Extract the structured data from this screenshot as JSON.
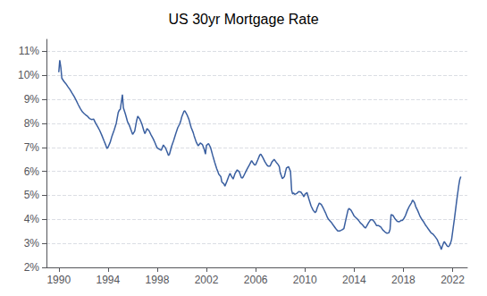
{
  "chart_data": {
    "type": "line",
    "title": "US 30yr Mortgage Rate",
    "color": "#3A5FA0",
    "grid": "y",
    "xlim": [
      1989.0,
      2023.2
    ],
    "ylim": [
      0.02,
      0.115
    ],
    "xticks": [
      1990,
      1994,
      1998,
      2002,
      2006,
      2010,
      2014,
      2018,
      2022
    ],
    "yticks": [
      {
        "value": 0.02,
        "label": "2%"
      },
      {
        "value": 0.03,
        "label": "3%"
      },
      {
        "value": 0.04,
        "label": "4%"
      },
      {
        "value": 0.05,
        "label": "5%"
      },
      {
        "value": 0.06,
        "label": "6%"
      },
      {
        "value": 0.07,
        "label": "7%"
      },
      {
        "value": 0.08,
        "label": "8%"
      },
      {
        "value": 0.09,
        "label": "9%"
      },
      {
        "value": 0.1,
        "label": "10%"
      },
      {
        "value": 0.11,
        "label": "11%"
      }
    ],
    "x": [
      1990.0,
      1990.08,
      1990.17,
      1990.25,
      1990.42,
      1990.58,
      1990.75,
      1990.92,
      1991.08,
      1991.25,
      1991.42,
      1991.58,
      1991.75,
      1991.92,
      1992.08,
      1992.17,
      1992.33,
      1992.5,
      1992.67,
      1992.83,
      1993.0,
      1993.17,
      1993.33,
      1993.5,
      1993.67,
      1993.83,
      1993.92,
      1994.0,
      1994.17,
      1994.33,
      1994.5,
      1994.67,
      1994.83,
      1994.92,
      1995.0,
      1995.17,
      1995.25,
      1995.42,
      1995.58,
      1995.75,
      1995.92,
      1996.0,
      1996.17,
      1996.33,
      1996.42,
      1996.58,
      1996.75,
      1996.92,
      1997.0,
      1997.17,
      1997.33,
      1997.5,
      1997.67,
      1997.83,
      1997.92,
      1998.0,
      1998.17,
      1998.33,
      1998.5,
      1998.67,
      1998.83,
      1998.92,
      1999.0,
      1999.17,
      1999.33,
      1999.5,
      1999.67,
      1999.83,
      1999.92,
      2000.0,
      2000.17,
      2000.25,
      2000.42,
      2000.58,
      2000.75,
      2000.92,
      2001.0,
      2001.17,
      2001.33,
      2001.5,
      2001.67,
      2001.83,
      2001.92,
      2002.0,
      2002.17,
      2002.33,
      2002.5,
      2002.67,
      2002.83,
      2002.92,
      2003.0,
      2003.17,
      2003.25,
      2003.42,
      2003.5,
      2003.67,
      2003.83,
      2003.92,
      2004.0,
      2004.17,
      2004.33,
      2004.5,
      2004.67,
      2004.83,
      2004.92,
      2005.0,
      2005.17,
      2005.33,
      2005.5,
      2005.67,
      2005.83,
      2005.92,
      2006.0,
      2006.17,
      2006.33,
      2006.42,
      2006.58,
      2006.75,
      2006.92,
      2007.0,
      2007.17,
      2007.33,
      2007.5,
      2007.67,
      2007.83,
      2007.92,
      2008.0,
      2008.17,
      2008.33,
      2008.5,
      2008.67,
      2008.75,
      2008.83,
      2008.92,
      2009.0,
      2009.08,
      2009.17,
      2009.33,
      2009.5,
      2009.67,
      2009.83,
      2009.92,
      2010.0,
      2010.17,
      2010.33,
      2010.5,
      2010.67,
      2010.83,
      2010.92,
      2011.0,
      2011.17,
      2011.33,
      2011.5,
      2011.67,
      2011.83,
      2011.92,
      2012.0,
      2012.17,
      2012.33,
      2012.5,
      2012.67,
      2012.83,
      2012.92,
      2013.0,
      2013.17,
      2013.33,
      2013.5,
      2013.58,
      2013.75,
      2013.92,
      2014.0,
      2014.17,
      2014.33,
      2014.5,
      2014.67,
      2014.83,
      2014.92,
      2015.0,
      2015.17,
      2015.33,
      2015.5,
      2015.67,
      2015.83,
      2015.92,
      2016.0,
      2016.17,
      2016.33,
      2016.5,
      2016.67,
      2016.83,
      2016.92,
      2017.0,
      2017.17,
      2017.33,
      2017.5,
      2017.67,
      2017.83,
      2017.92,
      2018.0,
      2018.17,
      2018.33,
      2018.5,
      2018.67,
      2018.75,
      2018.83,
      2018.92,
      2019.0,
      2019.17,
      2019.33,
      2019.5,
      2019.67,
      2019.83,
      2019.92,
      2020.0,
      2020.17,
      2020.25,
      2020.42,
      2020.58,
      2020.75,
      2020.83,
      2020.92,
      2021.0,
      2021.08,
      2021.17,
      2021.25,
      2021.33,
      2021.42,
      2021.5,
      2021.58,
      2021.67,
      2021.75,
      2021.83,
      2021.92,
      2022.0,
      2022.17,
      2022.33,
      2022.5,
      2022.58,
      2022.67
    ],
    "values": [
      0.1013,
      0.1063,
      0.1032,
      0.0988,
      0.0975,
      0.0965,
      0.0952,
      0.094,
      0.0926,
      0.0912,
      0.0895,
      0.0878,
      0.0862,
      0.0848,
      0.084,
      0.0836,
      0.083,
      0.082,
      0.0816,
      0.0818,
      0.08,
      0.0785,
      0.077,
      0.075,
      0.0728,
      0.0708,
      0.0695,
      0.07,
      0.072,
      0.0748,
      0.0772,
      0.08,
      0.0845,
      0.0855,
      0.0858,
      0.092,
      0.0865,
      0.0838,
      0.0808,
      0.079,
      0.0765,
      0.0754,
      0.0768,
      0.0812,
      0.083,
      0.0818,
      0.0798,
      0.0768,
      0.0757,
      0.0778,
      0.077,
      0.0752,
      0.0736,
      0.0718,
      0.0706,
      0.0698,
      0.0692,
      0.0688,
      0.071,
      0.0698,
      0.0678,
      0.0666,
      0.0672,
      0.0705,
      0.0728,
      0.0756,
      0.0782,
      0.0798,
      0.0812,
      0.0828,
      0.085,
      0.0852,
      0.0836,
      0.0816,
      0.0784,
      0.0762,
      0.0748,
      0.0722,
      0.0706,
      0.0718,
      0.0712,
      0.069,
      0.0672,
      0.0708,
      0.0716,
      0.07,
      0.0668,
      0.0638,
      0.0612,
      0.06,
      0.0588,
      0.0578,
      0.0556,
      0.0548,
      0.0538,
      0.056,
      0.0582,
      0.0592,
      0.0582,
      0.0568,
      0.0592,
      0.0606,
      0.0598,
      0.0574,
      0.0572,
      0.0578,
      0.0596,
      0.0612,
      0.0628,
      0.0645,
      0.0632,
      0.0626,
      0.0628,
      0.0648,
      0.0668,
      0.0672,
      0.0658,
      0.064,
      0.0626,
      0.0622,
      0.0622,
      0.064,
      0.065,
      0.0638,
      0.0628,
      0.062,
      0.0594,
      0.057,
      0.0578,
      0.0614,
      0.062,
      0.061,
      0.06,
      0.0522,
      0.0506,
      0.051,
      0.0504,
      0.0508,
      0.0516,
      0.0514,
      0.0502,
      0.0494,
      0.0504,
      0.0512,
      0.0484,
      0.0456,
      0.0438,
      0.0428,
      0.0434,
      0.0448,
      0.0468,
      0.0462,
      0.0446,
      0.0428,
      0.0408,
      0.04,
      0.0396,
      0.0386,
      0.0374,
      0.0362,
      0.0352,
      0.0352,
      0.0354,
      0.0356,
      0.0362,
      0.04,
      0.0438,
      0.0446,
      0.0438,
      0.0422,
      0.0414,
      0.0406,
      0.0398,
      0.0386,
      0.0378,
      0.0368,
      0.0364,
      0.037,
      0.0386,
      0.0398,
      0.0398,
      0.0388,
      0.0374,
      0.0374,
      0.0374,
      0.0368,
      0.0356,
      0.0348,
      0.0342,
      0.0344,
      0.0358,
      0.042,
      0.0416,
      0.0402,
      0.0392,
      0.039,
      0.0396,
      0.0396,
      0.04,
      0.0416,
      0.0438,
      0.0456,
      0.047,
      0.048,
      0.0476,
      0.0468,
      0.0454,
      0.0436,
      0.0416,
      0.04,
      0.0388,
      0.0374,
      0.0368,
      0.0362,
      0.035,
      0.0344,
      0.0338,
      0.0328,
      0.0316,
      0.0306,
      0.0294,
      0.0288,
      0.0274,
      0.0288,
      0.03,
      0.0308,
      0.03,
      0.0294,
      0.0288,
      0.0286,
      0.0292,
      0.03,
      0.0316,
      0.0346,
      0.041,
      0.0476,
      0.054,
      0.0565,
      0.0578
    ]
  }
}
